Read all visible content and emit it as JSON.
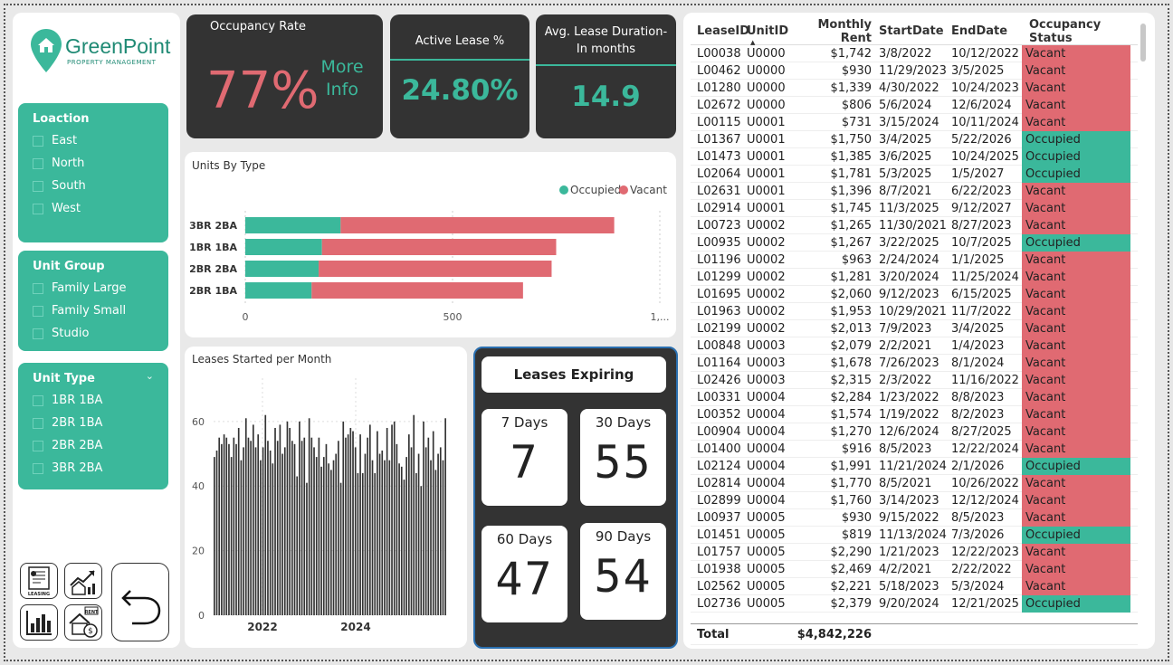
{
  "brand": {
    "name": "GreenPoint",
    "tagline": "PROPERTY MANAGEMENT"
  },
  "slicers": [
    {
      "title": "Loaction",
      "items": [
        "East",
        "North",
        "South",
        "West"
      ]
    },
    {
      "title": "Unit Group",
      "items": [
        "Family Large",
        "Family Small",
        "Studio"
      ]
    },
    {
      "title": "Unit Type",
      "items": [
        "1BR 1BA",
        "2BR 1BA",
        "2BR 2BA",
        "3BR 2BA"
      ]
    }
  ],
  "kpi": {
    "occupancy": {
      "title": "Occupancy Rate",
      "value": "77%",
      "more": "More Info"
    },
    "active": {
      "title": "Active Lease %",
      "value": "24.80%"
    },
    "duration": {
      "title": "Avg. Lease Duration-In months",
      "value": "14.9"
    }
  },
  "units_chart": {
    "title": "Units By Type",
    "legend": [
      "Occupied",
      "Vacant"
    ],
    "ticks": [
      "0",
      "500",
      "1,..."
    ]
  },
  "leases_chart": {
    "title": "Leases Started per Month",
    "yticks": [
      "0",
      "20",
      "40",
      "60"
    ],
    "xticks": [
      "2022",
      "2024"
    ]
  },
  "expiring": {
    "title": "Leases Expiring",
    "boxes": [
      {
        "label": "7 Days",
        "value": "7"
      },
      {
        "label": "30 Days",
        "value": "55"
      },
      {
        "label": "60 Days",
        "value": "47"
      },
      {
        "label": "90 Days",
        "value": "54"
      }
    ]
  },
  "table": {
    "headers": [
      "LeaseID",
      "UnitID",
      "Monthly Rent",
      "StartDate",
      "EndDate",
      "Occupancy Status"
    ],
    "rows": [
      [
        "L00038",
        "U0000",
        "$1,742",
        "3/8/2022",
        "10/12/2022",
        "Vacant"
      ],
      [
        "L00462",
        "U0000",
        "$930",
        "11/29/2023",
        "3/5/2025",
        "Vacant"
      ],
      [
        "L01280",
        "U0000",
        "$1,339",
        "4/30/2022",
        "10/24/2023",
        "Vacant"
      ],
      [
        "L02672",
        "U0000",
        "$806",
        "5/6/2024",
        "12/6/2024",
        "Vacant"
      ],
      [
        "L00115",
        "U0001",
        "$731",
        "3/15/2024",
        "10/11/2024",
        "Vacant"
      ],
      [
        "L01367",
        "U0001",
        "$1,750",
        "3/4/2025",
        "5/22/2026",
        "Occupied"
      ],
      [
        "L01473",
        "U0001",
        "$1,385",
        "3/6/2025",
        "10/24/2025",
        "Occupied"
      ],
      [
        "L02064",
        "U0001",
        "$1,781",
        "5/3/2025",
        "1/5/2027",
        "Occupied"
      ],
      [
        "L02631",
        "U0001",
        "$1,396",
        "8/7/2021",
        "6/22/2023",
        "Vacant"
      ],
      [
        "L02914",
        "U0001",
        "$1,745",
        "11/3/2025",
        "9/12/2027",
        "Vacant"
      ],
      [
        "L00723",
        "U0002",
        "$1,265",
        "11/30/2021",
        "8/27/2023",
        "Vacant"
      ],
      [
        "L00935",
        "U0002",
        "$1,267",
        "3/22/2025",
        "10/7/2025",
        "Occupied"
      ],
      [
        "L01196",
        "U0002",
        "$963",
        "2/24/2024",
        "1/1/2025",
        "Vacant"
      ],
      [
        "L01299",
        "U0002",
        "$1,281",
        "3/20/2024",
        "11/25/2024",
        "Vacant"
      ],
      [
        "L01695",
        "U0002",
        "$2,060",
        "9/12/2023",
        "6/15/2025",
        "Vacant"
      ],
      [
        "L01963",
        "U0002",
        "$1,953",
        "10/29/2021",
        "11/7/2022",
        "Vacant"
      ],
      [
        "L02199",
        "U0002",
        "$2,013",
        "7/9/2023",
        "3/4/2025",
        "Vacant"
      ],
      [
        "L00848",
        "U0003",
        "$2,079",
        "2/2/2021",
        "1/4/2023",
        "Vacant"
      ],
      [
        "L01164",
        "U0003",
        "$1,678",
        "7/26/2023",
        "8/1/2024",
        "Vacant"
      ],
      [
        "L02426",
        "U0003",
        "$2,315",
        "2/3/2022",
        "11/16/2022",
        "Vacant"
      ],
      [
        "L00331",
        "U0004",
        "$2,284",
        "1/23/2022",
        "8/8/2023",
        "Vacant"
      ],
      [
        "L00352",
        "U0004",
        "$1,574",
        "1/19/2022",
        "8/2/2023",
        "Vacant"
      ],
      [
        "L00904",
        "U0004",
        "$1,270",
        "12/6/2024",
        "8/27/2025",
        "Vacant"
      ],
      [
        "L01400",
        "U0004",
        "$916",
        "8/5/2023",
        "12/22/2024",
        "Vacant"
      ],
      [
        "L02124",
        "U0004",
        "$1,991",
        "11/21/2024",
        "2/1/2026",
        "Occupied"
      ],
      [
        "L02814",
        "U0004",
        "$1,770",
        "8/5/2021",
        "10/26/2022",
        "Vacant"
      ],
      [
        "L02899",
        "U0004",
        "$1,760",
        "3/14/2023",
        "12/12/2024",
        "Vacant"
      ],
      [
        "L00937",
        "U0005",
        "$930",
        "9/15/2022",
        "8/5/2023",
        "Vacant"
      ],
      [
        "L01451",
        "U0005",
        "$819",
        "11/13/2024",
        "7/3/2026",
        "Occupied"
      ],
      [
        "L01757",
        "U0005",
        "$2,290",
        "1/21/2023",
        "12/22/2023",
        "Vacant"
      ],
      [
        "L01938",
        "U0005",
        "$2,469",
        "4/2/2021",
        "2/22/2022",
        "Vacant"
      ],
      [
        "L02562",
        "U0005",
        "$2,221",
        "5/18/2023",
        "5/3/2024",
        "Vacant"
      ],
      [
        "L02736",
        "U0005",
        "$2,379",
        "9/20/2024",
        "12/21/2025",
        "Occupied"
      ]
    ],
    "total_label": "Total",
    "total_value": "$4,842,226"
  },
  "nav": {
    "leasing_label": "LEASING",
    "rent_label": "RENT"
  },
  "colors": {
    "teal": "#3bb89b",
    "red": "#e06a72",
    "dark": "#333333"
  },
  "chart_data": [
    {
      "type": "bar",
      "title": "Units By Type",
      "categories": [
        "3BR 2BA",
        "1BR 1BA",
        "2BR 2BA",
        "2BR 1BA"
      ],
      "series": [
        {
          "name": "Occupied",
          "values": [
            230,
            185,
            177,
            160
          ]
        },
        {
          "name": "Vacant",
          "values": [
            660,
            565,
            562,
            510
          ]
        }
      ],
      "xlim": [
        0,
        1000
      ],
      "legend": "top-right"
    },
    {
      "type": "bar",
      "title": "Leases Started per Month",
      "xticks": [
        "2022",
        "2024"
      ],
      "ylim": [
        0,
        65
      ],
      "values": [
        49,
        51,
        55,
        53,
        56,
        55,
        53,
        49,
        55,
        53,
        58,
        48,
        52,
        61,
        55,
        54,
        59,
        52,
        56,
        48,
        52,
        62,
        54,
        51,
        47,
        58,
        54,
        59,
        50,
        52,
        60,
        58,
        54,
        53,
        43,
        60,
        54,
        55,
        41,
        61,
        55,
        52,
        49,
        55,
        46,
        49,
        53,
        47,
        45,
        48,
        50,
        54,
        41,
        60,
        55,
        56,
        58,
        57,
        52,
        44,
        56,
        44,
        50,
        55,
        59,
        48,
        44,
        57,
        50,
        51,
        48,
        58,
        48,
        59,
        60,
        53,
        47,
        46,
        42,
        49,
        56,
        52,
        62,
        44,
        50,
        40,
        60,
        52,
        55,
        48,
        57,
        45,
        50,
        52,
        48,
        61
      ]
    }
  ]
}
